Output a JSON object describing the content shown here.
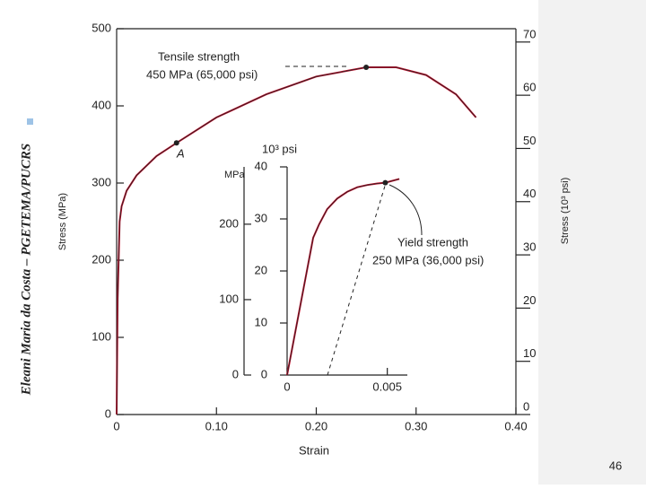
{
  "slide": {
    "author": "Eleani Maria da Costa – PGETEMA/PUCRS",
    "page": "46"
  },
  "chart_data": [
    {
      "type": "line",
      "xlabel": "Strain",
      "ylabel": "Stress (MPa)",
      "y2label": "Stress (10³ psi)",
      "x": [
        0,
        0.001,
        0.003,
        0.005,
        0.01,
        0.02,
        0.04,
        0.06,
        0.1,
        0.15,
        0.2,
        0.25,
        0.28,
        0.31,
        0.34,
        0.36
      ],
      "series": [
        {
          "color": "#c8102e",
          "values": [
            0,
            150,
            250,
            270,
            290,
            310,
            335,
            352,
            385,
            415,
            438,
            450,
            450,
            440,
            415,
            385
          ]
        }
      ],
      "markers": [
        {
          "x": 0.06,
          "y": 352
        },
        {
          "x": 0.25,
          "y": 450
        }
      ],
      "annotations": [
        "Tensile strength",
        "450 MPa (65,000 psi)",
        "A"
      ],
      "xlim": [
        0,
        0.4
      ],
      "xticks": [
        0,
        {
          "value": 0.1,
          "label": "0.10"
        },
        {
          "value": 0.2,
          "label": "0.20"
        },
        {
          "value": 0.3,
          "label": "0.30"
        },
        {
          "value": 0.4,
          "label": "0.40"
        }
      ],
      "ylim": [
        0,
        500
      ],
      "yticks": [
        0,
        100,
        200,
        300,
        400,
        500
      ],
      "y2lim": [
        0,
        72.5
      ],
      "y2ticks": [
        0,
        10,
        20,
        30,
        40,
        50,
        60,
        70
      ]
    },
    {
      "type": "line",
      "ylabel": "MPa",
      "y2label": "10³ psi",
      "x": [
        0,
        0.0013,
        0.0016,
        0.002,
        0.0025,
        0.003,
        0.0035,
        0.004,
        0.0045,
        0.0049,
        0.0056
      ],
      "series": [
        {
          "color": "#c8102e",
          "values": [
            0,
            182,
            200,
            220,
            234,
            243,
            249,
            252,
            254,
            255,
            260
          ]
        }
      ],
      "markers": [
        {
          "x": 0.0049,
          "y": 255
        }
      ],
      "annotations": [
        "Yield strength",
        "250 MPa (36,000 psi)"
      ],
      "xlim": [
        0,
        0.006
      ],
      "xticks": [
        0,
        0.005
      ],
      "ylim": [
        0,
        276
      ],
      "yticks": [
        0,
        100,
        200
      ],
      "y2lim": [
        0,
        40
      ],
      "y2ticks": [
        0,
        10,
        20,
        30,
        40
      ]
    }
  ]
}
